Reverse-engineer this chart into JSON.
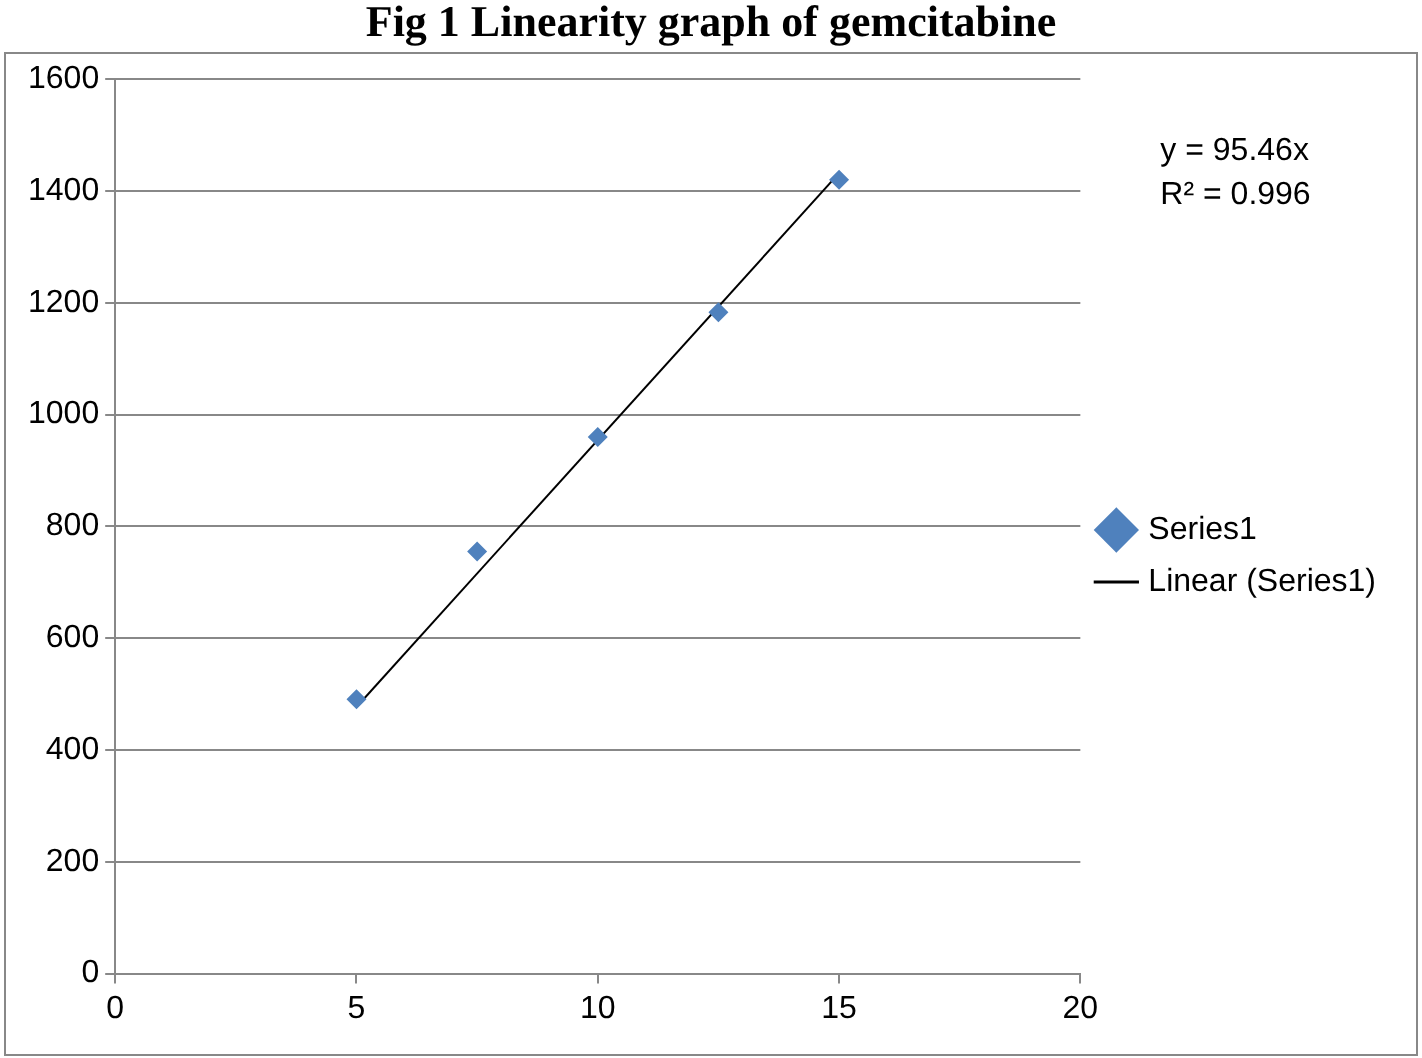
{
  "chart_data": {
    "type": "scatter",
    "title": "Fig 1 Linearity graph of gemcitabine",
    "xlim": [
      0,
      20
    ],
    "xticks": [
      0,
      5,
      10,
      15,
      20
    ],
    "ylim": [
      0,
      1600
    ],
    "yticks": [
      0,
      200,
      400,
      600,
      800,
      1000,
      1200,
      1400,
      1600
    ],
    "grid": "y",
    "legend": "right",
    "marker": "diamond",
    "annotations": [
      "y = 95.46x",
      "R² = 0.996"
    ],
    "series": [
      {
        "name": "Series1",
        "color": "#4f81bd",
        "x": [
          5,
          7.5,
          10,
          12.5,
          15
        ],
        "values": [
          491,
          755,
          960,
          1183,
          1420
        ]
      },
      {
        "name": "Linear (Series1)",
        "type": "line",
        "color": "#000000",
        "x": [
          5,
          15
        ],
        "values": [
          477,
          1432
        ],
        "marker": "none"
      }
    ]
  }
}
